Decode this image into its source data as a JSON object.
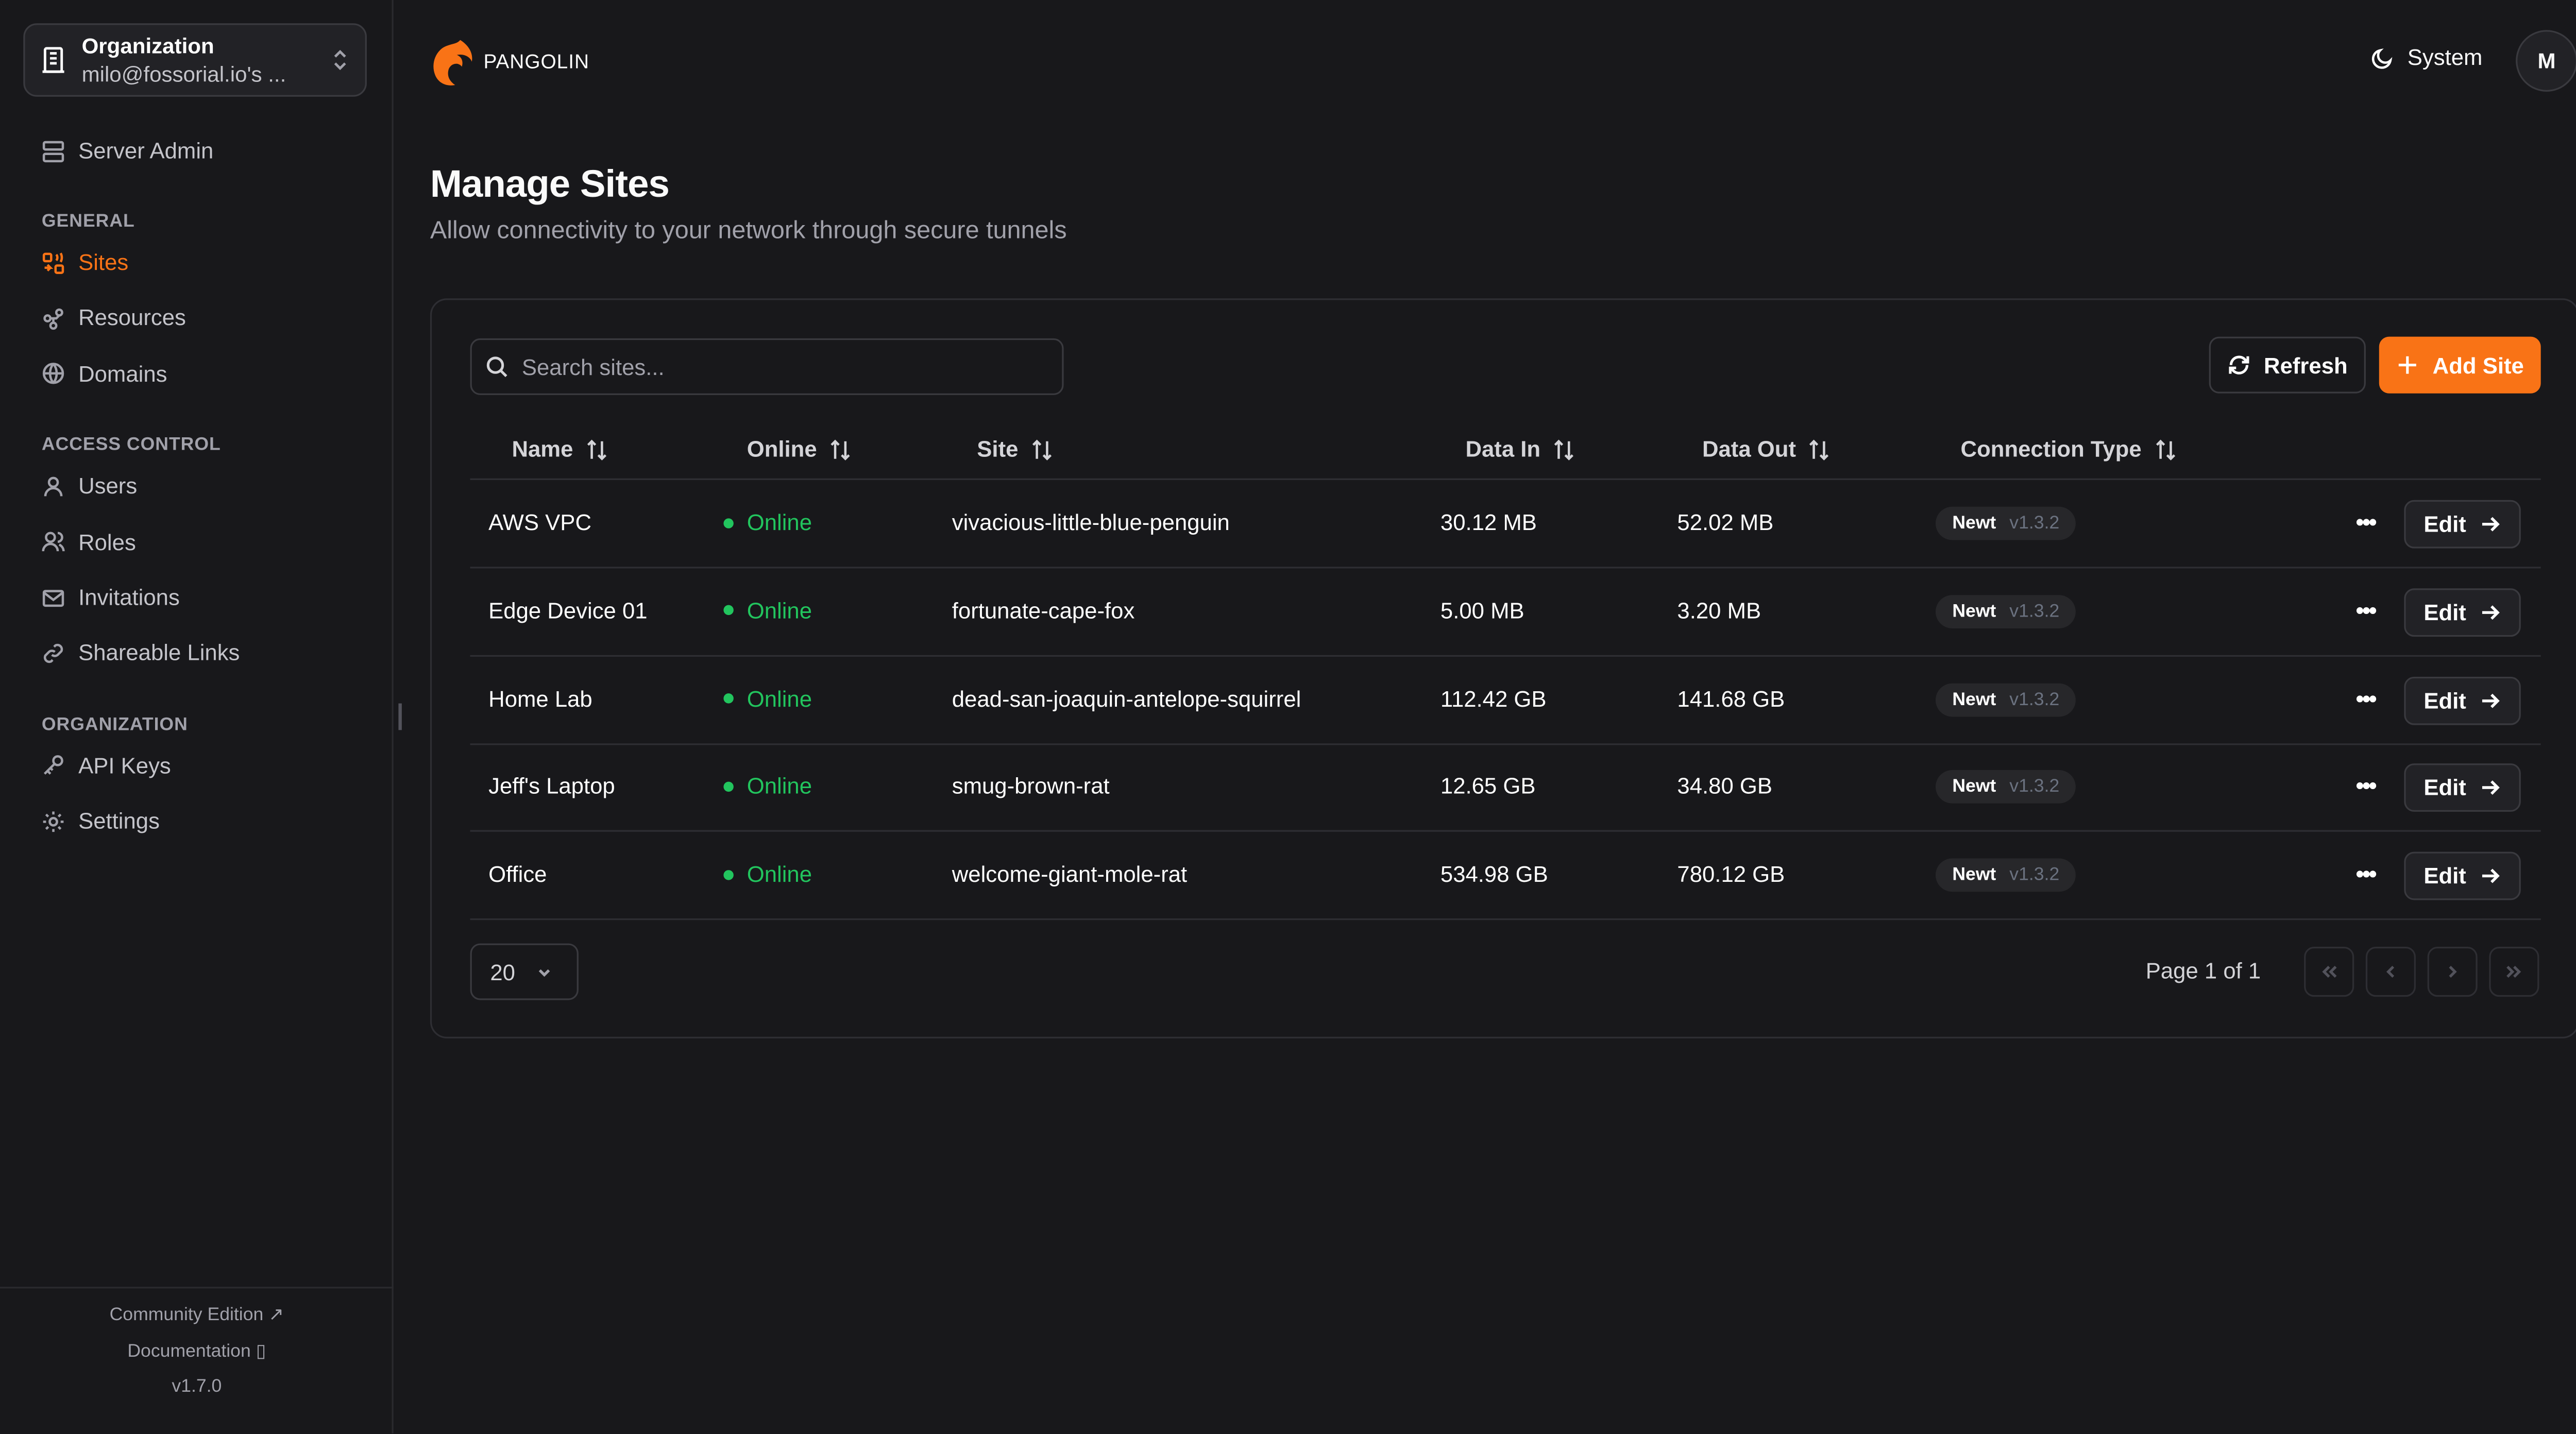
{
  "sidebar": {
    "org": {
      "label": "Organization",
      "value": "milo@fossorial.io's ..."
    },
    "server_admin": "Server Admin",
    "sections": [
      {
        "title": "GENERAL",
        "items": [
          {
            "label": "Sites",
            "icon": "sites-icon",
            "active": true
          },
          {
            "label": "Resources",
            "icon": "resources-icon"
          },
          {
            "label": "Domains",
            "icon": "globe-icon"
          }
        ]
      },
      {
        "title": "ACCESS CONTROL",
        "items": [
          {
            "label": "Users",
            "icon": "user-icon"
          },
          {
            "label": "Roles",
            "icon": "users-icon"
          },
          {
            "label": "Invitations",
            "icon": "mail-icon"
          },
          {
            "label": "Shareable Links",
            "icon": "link-icon"
          }
        ]
      },
      {
        "title": "ORGANIZATION",
        "items": [
          {
            "label": "API Keys",
            "icon": "key-icon"
          },
          {
            "label": "Settings",
            "icon": "gear-icon"
          }
        ]
      }
    ],
    "footer": {
      "community": "Community Edition",
      "docs": "Documentation",
      "version": "v1.7.0"
    }
  },
  "header": {
    "brand": "PANGOLIN",
    "theme": "System",
    "avatar": "M"
  },
  "page": {
    "title": "Manage Sites",
    "subtitle": "Allow connectivity to your network through secure tunnels"
  },
  "toolbar": {
    "search_placeholder": "Search sites...",
    "refresh": "Refresh",
    "add": "Add Site"
  },
  "table": {
    "columns": [
      "Name",
      "Online",
      "Site",
      "Data In",
      "Data Out",
      "Connection Type"
    ],
    "rows": [
      {
        "name": "AWS VPC",
        "online": "Online",
        "site": "vivacious-little-blue-penguin",
        "in": "30.12 MB",
        "out": "52.02 MB",
        "type": "Newt",
        "version": "v1.3.2"
      },
      {
        "name": "Edge Device 01",
        "online": "Online",
        "site": "fortunate-cape-fox",
        "in": "5.00 MB",
        "out": "3.20 MB",
        "type": "Newt",
        "version": "v1.3.2"
      },
      {
        "name": "Home Lab",
        "online": "Online",
        "site": "dead-san-joaquin-antelope-squirrel",
        "in": "112.42 GB",
        "out": "141.68 GB",
        "type": "Newt",
        "version": "v1.3.2"
      },
      {
        "name": "Jeff's Laptop",
        "online": "Online",
        "site": "smug-brown-rat",
        "in": "12.65 GB",
        "out": "34.80 GB",
        "type": "Newt",
        "version": "v1.3.2"
      },
      {
        "name": "Office",
        "online": "Online",
        "site": "welcome-giant-mole-rat",
        "in": "534.98 GB",
        "out": "780.12 GB",
        "type": "Newt",
        "version": "v1.3.2"
      }
    ],
    "edit_label": "Edit"
  },
  "pagination": {
    "page_size": "20",
    "info": "Page 1 of 1"
  },
  "colors": {
    "accent": "#f97316",
    "online": "#22c55e",
    "background": "#18181b"
  }
}
